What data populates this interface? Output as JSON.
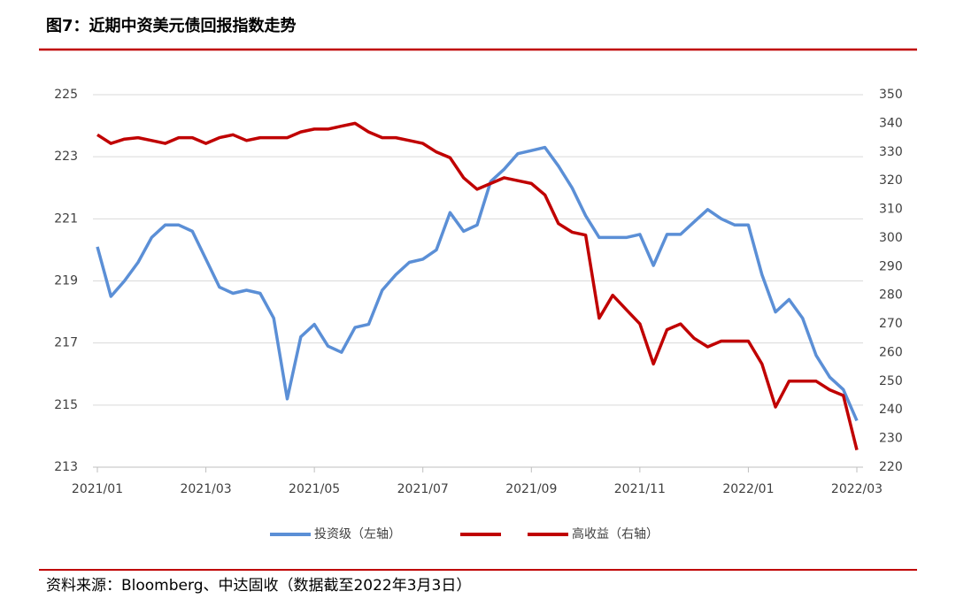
{
  "title": "图7：近期中资美元债回报指数走势",
  "source": "资料来源：Bloomberg、中达固收（数据截至2022年3月3日）",
  "chart_data": {
    "type": "line",
    "categories": [
      "2021/01",
      null,
      null,
      null,
      null,
      null,
      null,
      null,
      "2021/03",
      null,
      null,
      null,
      null,
      null,
      null,
      null,
      "2021/05",
      null,
      null,
      null,
      null,
      null,
      null,
      null,
      "2021/07",
      null,
      null,
      null,
      null,
      null,
      null,
      null,
      "2021/09",
      null,
      null,
      null,
      null,
      null,
      null,
      null,
      "2021/11",
      null,
      null,
      null,
      null,
      null,
      null,
      null,
      "2022/01",
      null,
      null,
      null,
      null,
      null,
      null,
      null,
      "2022/03"
    ],
    "series": [
      {
        "name": "投资级（左轴）",
        "color": "#5b8fd6",
        "axis": "y",
        "values": [
          220.1,
          218.5,
          219.0,
          219.6,
          220.4,
          220.8,
          220.8,
          220.6,
          219.7,
          218.8,
          218.6,
          218.7,
          218.6,
          217.8,
          215.2,
          217.2,
          217.6,
          216.9,
          216.7,
          217.5,
          217.6,
          218.7,
          219.2,
          219.6,
          219.7,
          220.0,
          221.2,
          220.6,
          220.8,
          222.2,
          222.6,
          223.1,
          223.2,
          223.3,
          222.7,
          222.0,
          221.1,
          220.4,
          220.4,
          220.4,
          220.5,
          219.5,
          220.5,
          220.5,
          220.9,
          221.3,
          221.0,
          220.8,
          220.8,
          219.2,
          218.0,
          218.4,
          217.8,
          216.6,
          215.9,
          215.5,
          214.5
        ]
      },
      {
        "name": "高收益（右轴）",
        "color": "#c00000",
        "axis": "y2",
        "values": [
          336,
          333,
          334.5,
          335,
          334,
          333,
          335,
          335,
          333,
          335,
          336,
          334,
          335,
          335,
          335,
          337,
          338,
          338,
          339,
          340,
          337,
          335,
          335,
          334,
          333,
          330,
          328,
          321,
          317,
          319,
          321,
          320,
          319,
          315,
          305,
          302,
          301,
          272,
          280,
          275,
          270,
          256,
          268,
          270,
          265,
          262,
          264,
          264,
          264,
          256,
          241,
          250,
          250,
          250,
          247,
          245,
          226
        ]
      }
    ],
    "ylim": [
      213,
      225
    ],
    "yticks": [
      213,
      215,
      217,
      219,
      221,
      223,
      225
    ],
    "y2lim": [
      220,
      350
    ],
    "y2ticks": [
      220,
      230,
      240,
      250,
      260,
      270,
      280,
      290,
      300,
      310,
      320,
      330,
      340,
      350
    ],
    "grid": true
  }
}
